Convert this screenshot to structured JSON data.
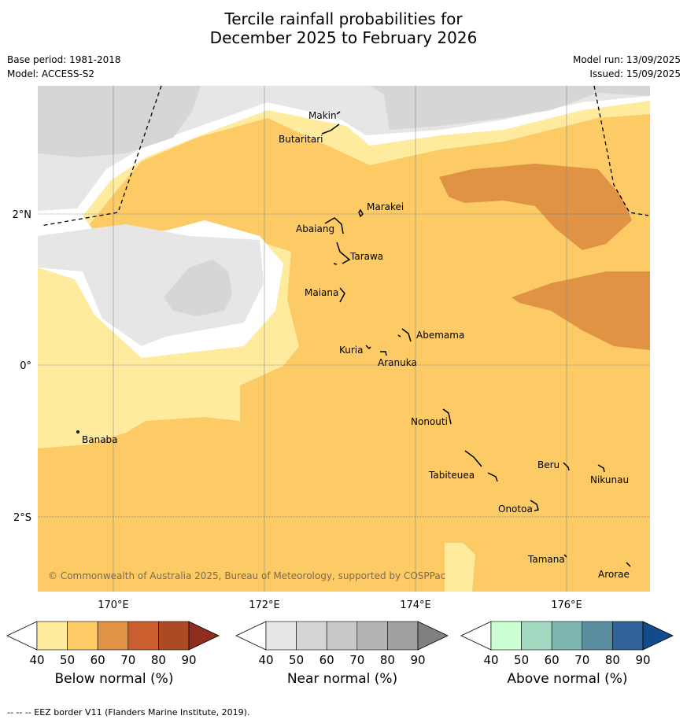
{
  "title_line1": "Tercile rainfall probabilities for",
  "title_line2": "December 2025 to February 2026",
  "meta": {
    "base_period": "Base period: 1981-2018",
    "model": "Model: ACCESS-S2",
    "model_run": "Model run: 13/09/2025",
    "issued": "Issued: 15/09/2025"
  },
  "map": {
    "lat_labels": [
      "2°N",
      "0°",
      "2°S"
    ],
    "lon_labels": [
      "170°E",
      "172°E",
      "174°E",
      "176°E"
    ],
    "copyright": "© Commonwealth of Australia 2025, Bureau of Meteorology, supported by COSPPac",
    "islands": [
      "Makin",
      "Butaritari",
      "Marakei",
      "Abaiang",
      "Tarawa",
      "Maiana",
      "Abemama",
      "Kuria",
      "Aranuka",
      "Nonouti",
      "Banaba",
      "Beru",
      "Nikunau",
      "Tabiteuea",
      "Onotoa",
      "Tamana",
      "Arorae"
    ]
  },
  "colors": {
    "below": [
      "#ffeb9e",
      "#fdcb65",
      "#e09345",
      "#cb5e2f",
      "#ad4a26",
      "#8c2d1e"
    ],
    "near": [
      "#e6e6e6",
      "#d6d6d6",
      "#c8c8c8",
      "#b4b4b4",
      "#a0a0a0",
      "#808080"
    ],
    "above": [
      "#ccffd1",
      "#a3d9c1",
      "#7fb6b1",
      "#5b8fa0",
      "#2f6399",
      "#134b8a"
    ]
  },
  "legends": {
    "ticks": [
      "40",
      "50",
      "60",
      "70",
      "80",
      "90"
    ],
    "below_title": "Below normal (%)",
    "near_title": "Near normal (%)",
    "above_title": "Above normal (%)"
  },
  "footer": "--  --  -- EEZ border V11 (Flanders Marine Institute, 2019)."
}
